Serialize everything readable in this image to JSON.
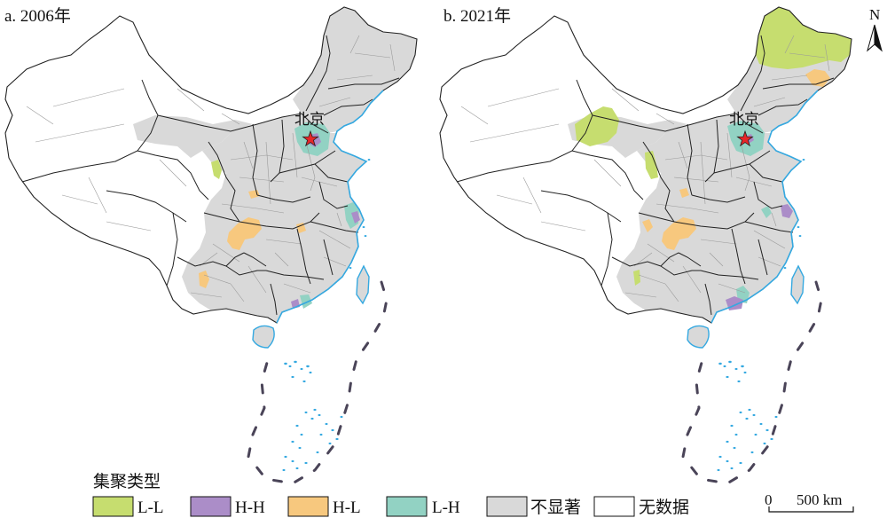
{
  "maps": [
    {
      "title": "a. 2006年",
      "capital_label": "北京"
    },
    {
      "title": "b. 2021年",
      "capital_label": "北京"
    }
  ],
  "north_arrow": {
    "label": "N"
  },
  "legend": {
    "title": "集聚类型",
    "items": [
      {
        "label": "L-L",
        "color": "#c6dd6f"
      },
      {
        "label": "H-H",
        "color": "#ab8dc8"
      },
      {
        "label": "H-L",
        "color": "#f7c87e"
      },
      {
        "label": "L-H",
        "color": "#92d2c3"
      },
      {
        "label": "不显著",
        "color": "#d9d9d9"
      },
      {
        "label": "无数据",
        "color": "#ffffff"
      }
    ]
  },
  "scale_bar": {
    "start_label": "0",
    "end_label": "500 km"
  },
  "colors": {
    "coastline": "#35a9e1",
    "capital_star": "#e52629",
    "boundary": "#222222",
    "dashed_line": "#4a4458"
  }
}
